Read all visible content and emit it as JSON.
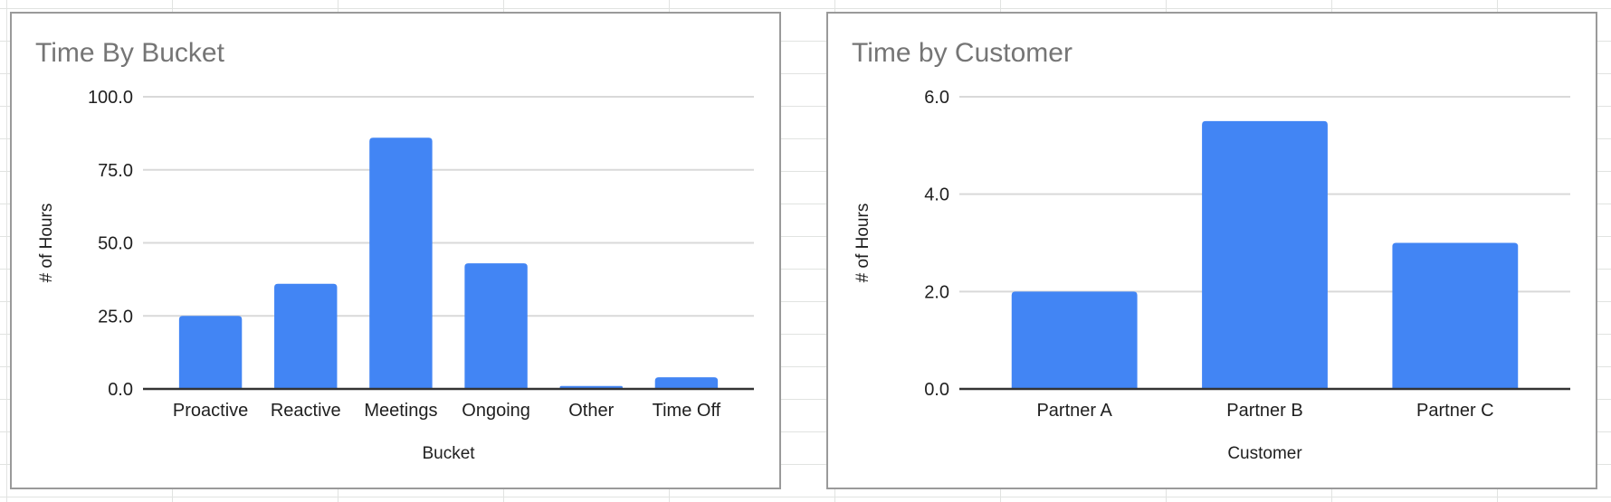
{
  "app": {
    "background": "spreadsheet-grid",
    "grid_color": "#e1e3e1"
  },
  "styles": {
    "bar_color": "#4285f4",
    "title_color": "#757575",
    "axis_line_color": "#333333",
    "gridline_color": "#d9d9d9",
    "label_color": "#1f1f1f",
    "panel_border_color": "#9a9a9a"
  },
  "chart_data": [
    {
      "type": "bar",
      "title": "Time By Bucket",
      "xlabel": "Bucket",
      "ylabel": "# of Hours",
      "categories": [
        "Proactive",
        "Reactive",
        "Meetings",
        "Ongoing",
        "Other",
        "Time Off"
      ],
      "values": [
        25,
        36,
        86,
        43,
        1,
        4
      ],
      "ylim": [
        0,
        100
      ],
      "yticks": [
        0,
        25,
        50,
        75,
        100
      ],
      "ytick_labels": [
        "0.0",
        "25.0",
        "50.0",
        "75.0",
        "100.0"
      ],
      "bar_color": "#4285f4",
      "grid": true,
      "legend_position": "none"
    },
    {
      "type": "bar",
      "title": "Time by Customer",
      "xlabel": "Customer",
      "ylabel": "# of Hours",
      "categories": [
        "Partner A",
        "Partner B",
        "Partner C"
      ],
      "values": [
        2,
        5.5,
        3
      ],
      "ylim": [
        0,
        6
      ],
      "yticks": [
        0,
        2,
        4,
        6
      ],
      "ytick_labels": [
        "0.0",
        "2.0",
        "4.0",
        "6.0"
      ],
      "bar_color": "#4285f4",
      "grid": true,
      "legend_position": "none"
    }
  ]
}
